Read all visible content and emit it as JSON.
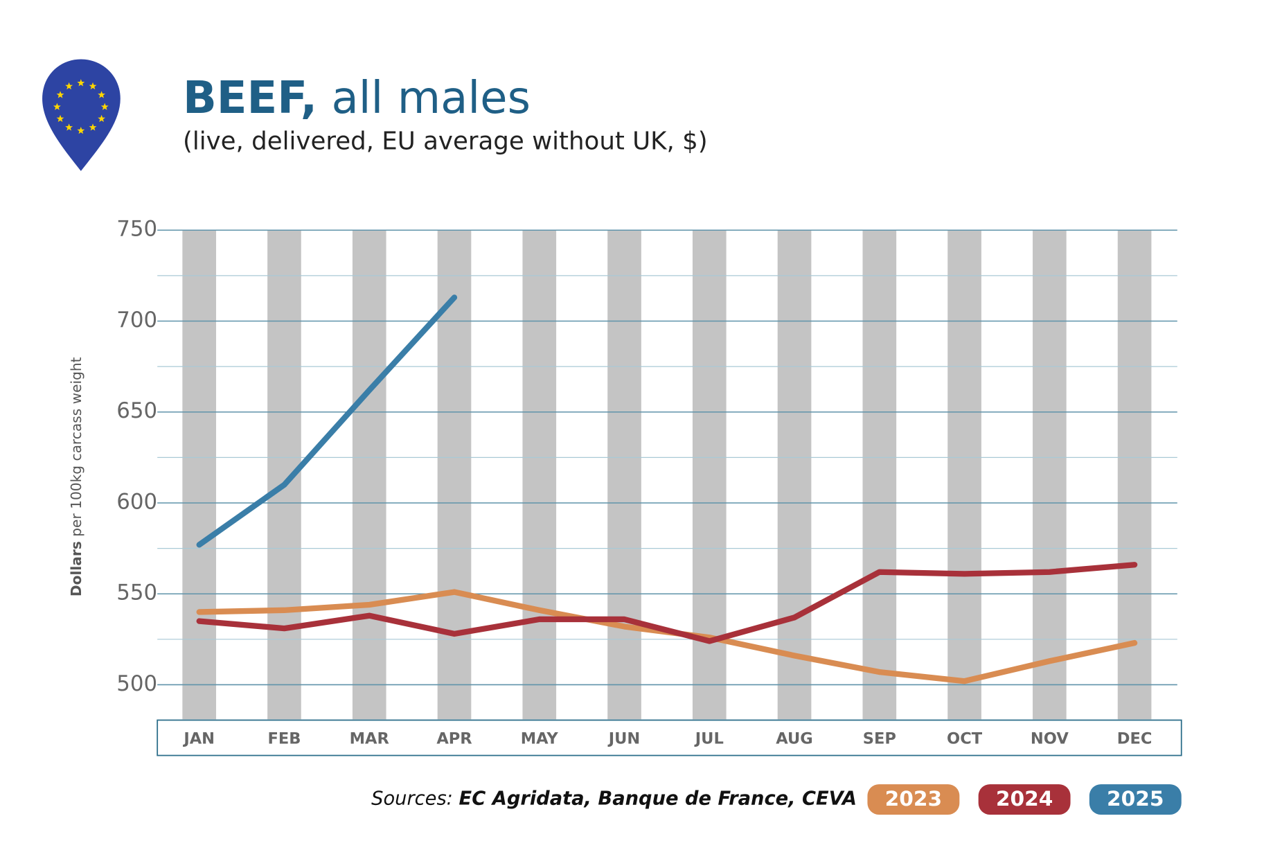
{
  "chart_data": {
    "type": "line",
    "title_bold": "BEEF,",
    "title_rest": "all males",
    "subtitle": "(live, delivered, EU average without UK, $)",
    "ylabel_bold": "Dollars",
    "ylabel_rest": "per 100kg carcass weight",
    "source_label": "Sources:",
    "source": "EC Agridata, Banque de France, CEVA",
    "categories": [
      "JAN",
      "FEB",
      "MAR",
      "APR",
      "MAY",
      "JUN",
      "JUL",
      "AUG",
      "SEP",
      "OCT",
      "NOV",
      "DEC"
    ],
    "series": [
      {
        "name": "2023",
        "color": "#d98c52",
        "values": [
          540,
          541,
          544,
          551,
          541,
          532,
          526,
          516,
          507,
          502,
          513,
          523
        ]
      },
      {
        "name": "2024",
        "color": "#a8313a",
        "values": [
          535,
          531,
          538,
          528,
          536,
          536,
          524,
          537,
          562,
          561,
          562,
          566
        ]
      },
      {
        "name": "2025",
        "color": "#3a7ea8",
        "values": [
          577,
          610,
          662,
          713,
          null,
          null,
          null,
          null,
          null,
          null,
          null,
          null
        ]
      }
    ],
    "ylim": [
      481,
      750
    ],
    "yticks": [
      500,
      550,
      600,
      650,
      700,
      750
    ],
    "minor_yticks": [
      525,
      575,
      625,
      675,
      725
    ],
    "grid": true,
    "legend": "bottom-right"
  }
}
